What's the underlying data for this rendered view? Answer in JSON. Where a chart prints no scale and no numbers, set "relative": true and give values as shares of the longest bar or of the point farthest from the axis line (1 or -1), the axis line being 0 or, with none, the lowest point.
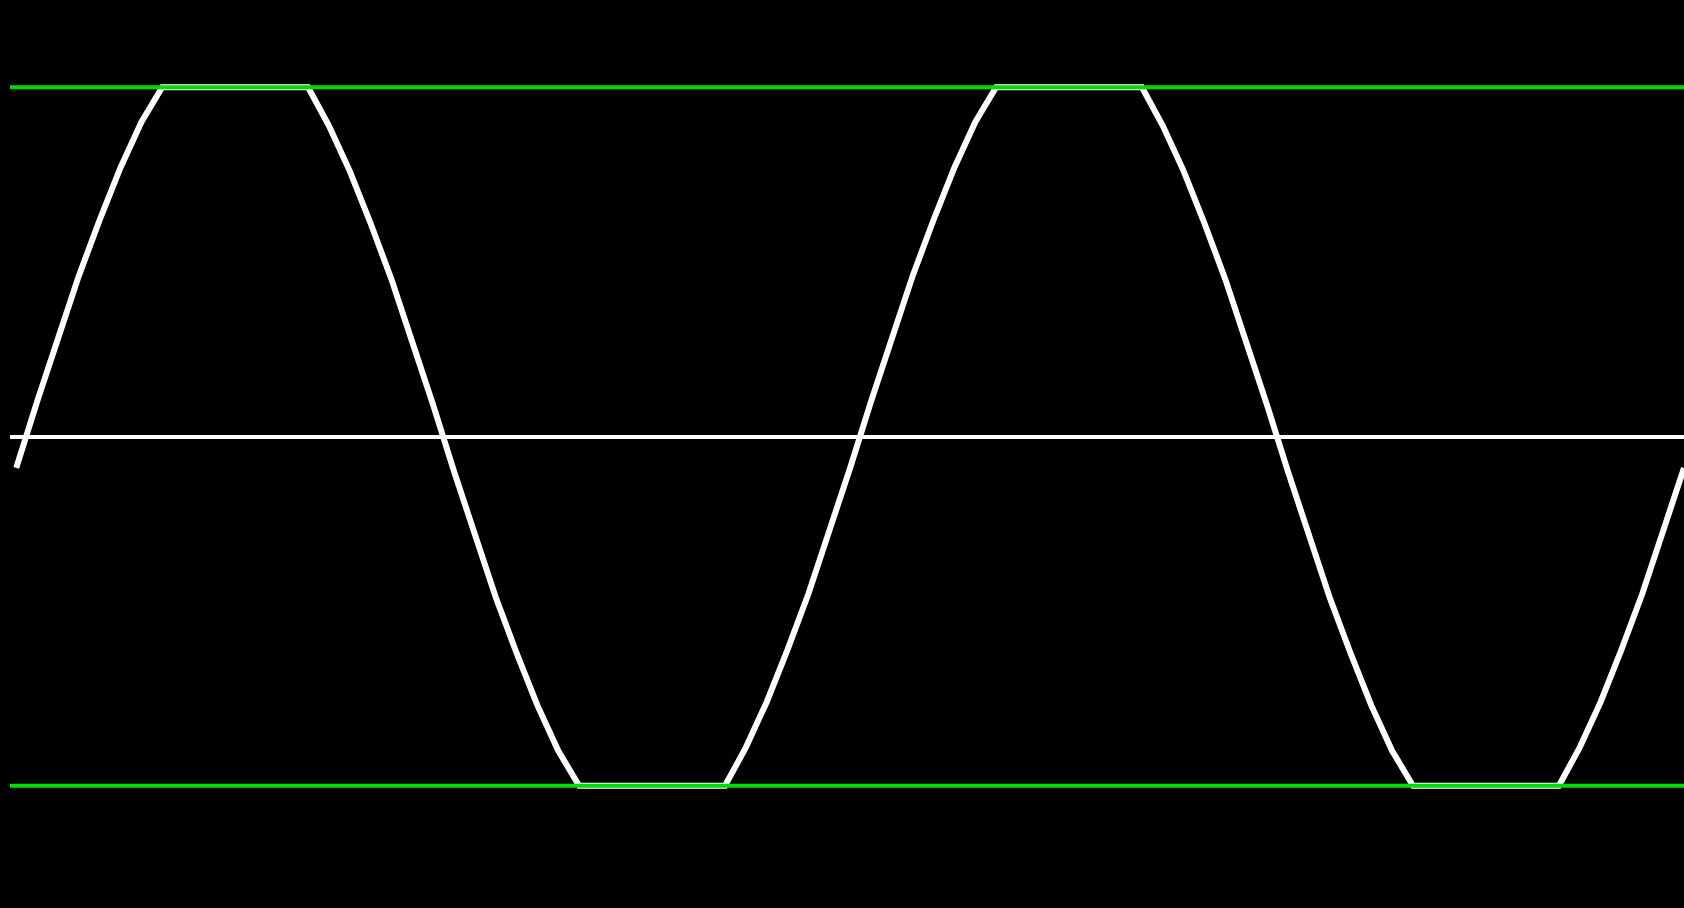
{
  "chart_data": {
    "type": "line",
    "relative": true,
    "categories": [
      null,
      null,
      null,
      null,
      null,
      null,
      null,
      null,
      null,
      null,
      null,
      null,
      null,
      null,
      null,
      null,
      null,
      null,
      null,
      null,
      null,
      null,
      null,
      null,
      null,
      null,
      null,
      null,
      null,
      null,
      null,
      null,
      null,
      null,
      null,
      null,
      null,
      null,
      null,
      null,
      null,
      null,
      null,
      null,
      null,
      null,
      null,
      null,
      null,
      null,
      null,
      null,
      null,
      null,
      null,
      null,
      null,
      null,
      null,
      null,
      null,
      null,
      null,
      null,
      null,
      null,
      null,
      null,
      null,
      null,
      null,
      null,
      null,
      null,
      null,
      null,
      null,
      null,
      null,
      null,
      null
    ],
    "series": [
      {
        "color": "#ffffff",
        "values": [
          -0.09,
          0.1,
          0.28,
          0.46,
          0.62,
          0.77,
          0.9,
          1,
          1,
          1,
          1,
          1,
          1,
          1,
          1,
          0.89,
          0.76,
          0.61,
          0.45,
          0.27,
          0.09,
          -0.1,
          -0.28,
          -0.46,
          -0.62,
          -0.77,
          -0.9,
          -1,
          -1,
          -1,
          -1,
          -1,
          -1,
          -1,
          -1,
          -0.89,
          -0.76,
          -0.61,
          -0.45,
          -0.27,
          -0.09,
          0.1,
          0.28,
          0.46,
          0.62,
          0.77,
          0.9,
          1,
          1,
          1,
          1,
          1,
          1,
          1,
          1,
          0.89,
          0.76,
          0.61,
          0.45,
          0.27,
          0.09,
          -0.1,
          -0.28,
          -0.46,
          -0.62,
          -0.77,
          -0.9,
          -1,
          -1,
          -1,
          -1,
          -1,
          -1,
          -1,
          -1,
          -0.89,
          -0.76,
          -0.61,
          -0.45,
          -0.27,
          -0.09
        ]
      }
    ],
    "ref_lines": [
      {
        "axis": "y",
        "value": 1,
        "color": "#00dd00"
      },
      {
        "axis": "y",
        "value": -1,
        "color": "#00dd00"
      }
    ],
    "grid": false,
    "legend": false,
    "marker": "none",
    "line_style": "solid"
  }
}
